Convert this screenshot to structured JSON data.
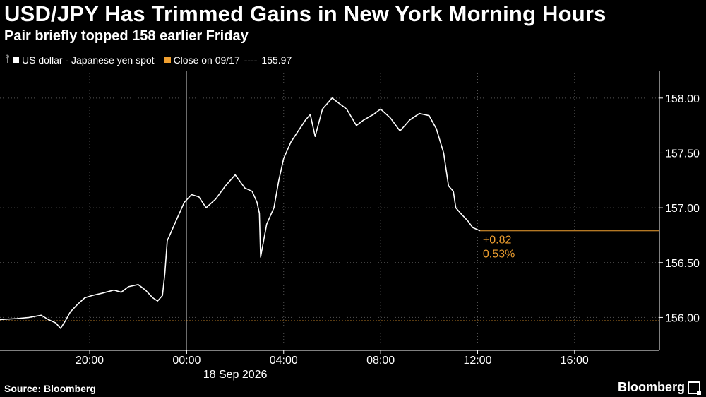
{
  "header": {
    "title": "USD/JPY Has Trimmed Gains in New York Morning Hours",
    "subtitle": "Pair briefly topped 158 earlier Friday"
  },
  "legend": {
    "series_label": "US dollar - Japanese yen spot",
    "close_label": "Close on 09/17",
    "close_dashes": "----",
    "close_value": "155.97"
  },
  "footer": {
    "source": "Source: Bloomberg",
    "brand": "Bloomberg"
  },
  "colors": {
    "background": "#000000",
    "series": "#ffffff",
    "close_line": "#f0a030",
    "annotation": "#f0a030",
    "grid": "#555555"
  },
  "chart_data": {
    "type": "line",
    "title": "USD/JPY Has Trimmed Gains in New York Morning Hours",
    "subtitle": "Pair briefly topped 158 earlier Friday",
    "x_tick_labels": [
      "20:00",
      "00:00",
      "04:00",
      "08:00",
      "12:00",
      "16:00"
    ],
    "x_date_label": "18 Sep 2026",
    "x_ticks_hours": [
      20,
      24,
      28,
      32,
      36,
      40
    ],
    "xlim_hours": [
      16.3,
      43.5
    ],
    "y_tick_labels": [
      "156.00",
      "156.50",
      "157.00",
      "157.50",
      "158.00"
    ],
    "y_ticks": [
      156.0,
      156.5,
      157.0,
      157.5,
      158.0
    ],
    "ylim": [
      155.7,
      158.25
    ],
    "y_axis_side": "right",
    "grid": "dotted vertical and horizontal",
    "reference_line": {
      "name": "Close on 09/17",
      "value": 155.97
    },
    "annotations": {
      "change": "+0.82",
      "percent": "0.53%"
    },
    "last_value": 156.79,
    "series": [
      {
        "name": "US dollar - Japanese yen spot",
        "x_hours": [
          16.3,
          17.0,
          17.5,
          18.0,
          18.3,
          18.6,
          18.8,
          19.0,
          19.2,
          19.5,
          19.8,
          20.1,
          20.5,
          21.0,
          21.3,
          21.6,
          22.0,
          22.3,
          22.6,
          22.8,
          23.0,
          23.1,
          23.2,
          23.3,
          23.6,
          23.9,
          24.2,
          24.5,
          24.8,
          25.2,
          25.6,
          26.0,
          26.4,
          26.7,
          26.9,
          27.0,
          27.05,
          27.3,
          27.6,
          27.8,
          28.0,
          28.3,
          28.6,
          28.9,
          29.1,
          29.3,
          29.6,
          30.0,
          30.3,
          30.6,
          31.0,
          31.3,
          31.7,
          32.0,
          32.4,
          32.8,
          33.2,
          33.6,
          34.0,
          34.3,
          34.6,
          34.8,
          35.0,
          35.1,
          35.3,
          35.6,
          35.8,
          36.0,
          36.1
        ],
        "values": [
          155.98,
          155.99,
          156.0,
          156.02,
          155.98,
          155.95,
          155.9,
          155.97,
          156.05,
          156.12,
          156.18,
          156.2,
          156.22,
          156.25,
          156.23,
          156.28,
          156.3,
          156.25,
          156.18,
          156.15,
          156.2,
          156.4,
          156.7,
          156.75,
          156.9,
          157.05,
          157.12,
          157.1,
          157.0,
          157.08,
          157.2,
          157.3,
          157.18,
          157.15,
          157.05,
          156.95,
          156.55,
          156.85,
          157.0,
          157.25,
          157.45,
          157.6,
          157.7,
          157.8,
          157.85,
          157.65,
          157.9,
          158.0,
          157.95,
          157.9,
          157.75,
          157.8,
          157.85,
          157.9,
          157.82,
          157.7,
          157.8,
          157.86,
          157.84,
          157.72,
          157.5,
          157.2,
          157.15,
          157.0,
          156.95,
          156.88,
          156.82,
          156.8,
          156.79
        ]
      }
    ]
  }
}
